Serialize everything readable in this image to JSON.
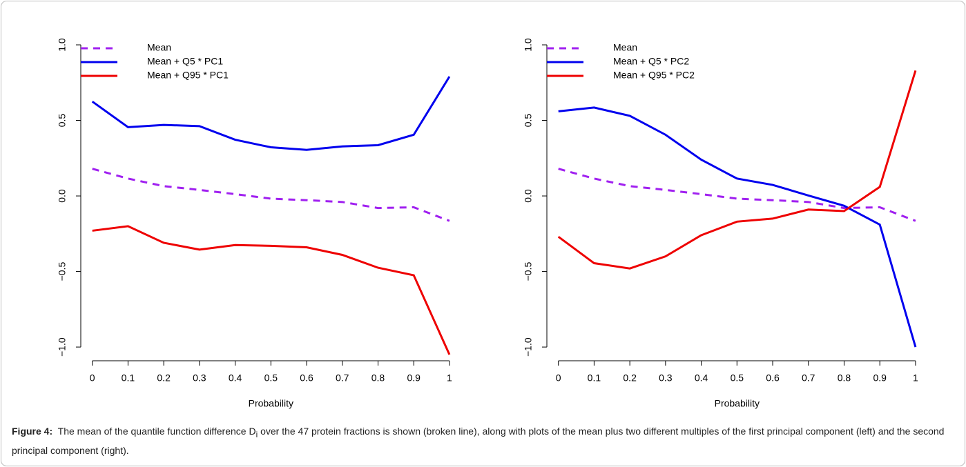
{
  "chart_data": [
    {
      "type": "line",
      "xlabel": "Probability",
      "x": [
        0,
        0.1,
        0.2,
        0.3,
        0.4,
        0.5,
        0.6,
        0.7,
        0.8,
        0.9,
        1
      ],
      "xlim": [
        -0.04,
        1.04
      ],
      "ylim": [
        -1.1,
        1.08
      ],
      "xticks": [
        0,
        0.1,
        0.2,
        0.3,
        0.4,
        0.5,
        0.6,
        0.7,
        0.8,
        0.9,
        1
      ],
      "yticks": [
        {
          "value": -1,
          "label": "−1.0"
        },
        {
          "value": -0.5,
          "label": "−0.5"
        },
        {
          "value": 0,
          "label": "0.0"
        },
        {
          "value": 0.5,
          "label": "0.5"
        },
        {
          "value": 1,
          "label": "1.0"
        }
      ],
      "legend": "top-left",
      "series": [
        {
          "name": "Mean",
          "color": "#a020f0",
          "line_style": "dashed",
          "values": [
            0.18,
            0.115,
            0.065,
            0.04,
            0.012,
            -0.018,
            -0.028,
            -0.04,
            -0.08,
            -0.075,
            -0.165
          ]
        },
        {
          "name": "Mean + Q5 * PC1",
          "color": "#0000ee",
          "line_style": "solid",
          "values": [
            0.625,
            0.455,
            0.47,
            0.462,
            0.372,
            0.322,
            0.305,
            0.328,
            0.336,
            0.405,
            0.79
          ]
        },
        {
          "name": "Mean + Q95 * PC1",
          "color": "#ee0000",
          "line_style": "solid",
          "values": [
            -0.23,
            -0.2,
            -0.31,
            -0.355,
            -0.325,
            -0.33,
            -0.34,
            -0.39,
            -0.475,
            -0.525,
            -1.05
          ]
        }
      ]
    },
    {
      "type": "line",
      "xlabel": "Probability",
      "x": [
        0,
        0.1,
        0.2,
        0.3,
        0.4,
        0.5,
        0.6,
        0.7,
        0.8,
        0.9,
        1
      ],
      "xlim": [
        -0.04,
        1.04
      ],
      "ylim": [
        -1.1,
        1.08
      ],
      "xticks": [
        0,
        0.1,
        0.2,
        0.3,
        0.4,
        0.5,
        0.6,
        0.7,
        0.8,
        0.9,
        1
      ],
      "yticks": [
        {
          "value": -1,
          "label": "−1.0"
        },
        {
          "value": -0.5,
          "label": "−0.5"
        },
        {
          "value": 0,
          "label": "0.0"
        },
        {
          "value": 0.5,
          "label": "0.5"
        },
        {
          "value": 1,
          "label": "1.0"
        }
      ],
      "legend": "top-left",
      "series": [
        {
          "name": "Mean",
          "color": "#a020f0",
          "line_style": "dashed",
          "values": [
            0.18,
            0.115,
            0.065,
            0.04,
            0.012,
            -0.018,
            -0.028,
            -0.04,
            -0.08,
            -0.075,
            -0.165
          ]
        },
        {
          "name": "Mean + Q5 * PC2",
          "color": "#0000ee",
          "line_style": "solid",
          "values": [
            0.56,
            0.585,
            0.53,
            0.405,
            0.24,
            0.115,
            0.073,
            0.003,
            -0.065,
            -0.19,
            -1.0
          ]
        },
        {
          "name": "Mean + Q95 * PC2",
          "color": "#ee0000",
          "line_style": "solid",
          "values": [
            -0.27,
            -0.445,
            -0.48,
            -0.4,
            -0.26,
            -0.17,
            -0.15,
            -0.09,
            -0.1,
            0.06,
            0.83
          ]
        }
      ]
    }
  ],
  "caption": {
    "label": "Figure 4:",
    "text_before": "The mean of the quantile function difference D",
    "subscript": "i",
    "text_after": " over the 47 protein fractions is shown (broken line), along with plots of the mean plus two different multiples of the first principal component (left) and the second principal component (right)."
  }
}
